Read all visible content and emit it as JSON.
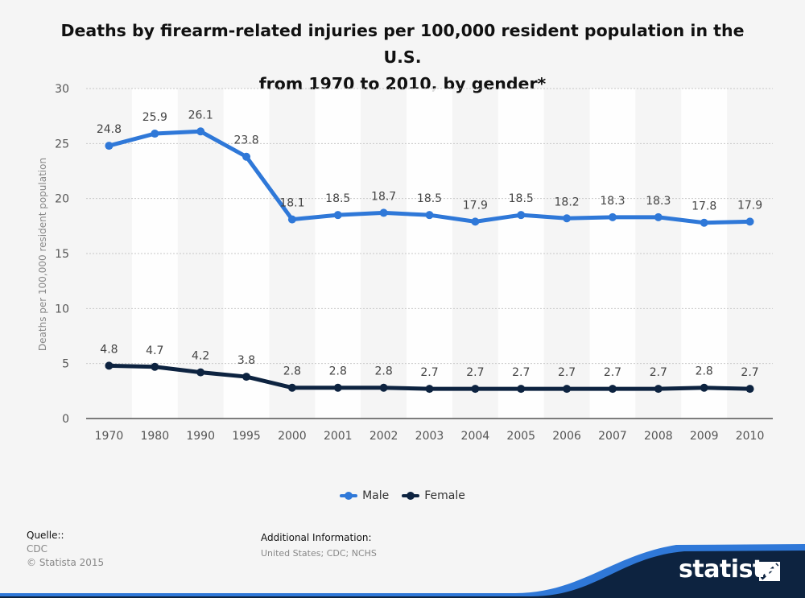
{
  "title_line1": "Deaths by firearm-related injuries per 100,000 resident population in the U.S.",
  "title_line2": "from 1970 to 2010, by gender*",
  "source": {
    "heading": "Quelle::",
    "name": "CDC",
    "copyright": "© Statista 2015"
  },
  "additional_info": {
    "heading": "Additional Information:",
    "text": "United States; CDC; NCHS"
  },
  "logo": {
    "text": "statista"
  },
  "colors": {
    "male": "#2f78d8",
    "female": "#0d2340",
    "band_odd": "#ffffff",
    "grid": "#c8c8c8",
    "footer_navy": "#0d2340",
    "footer_blue": "#2f78d8"
  },
  "chart_data": {
    "type": "line",
    "title": "Deaths by firearm-related injuries per 100,000 resident population in the U.S. from 1970 to 2010, by gender*",
    "ylabel": "Deaths per 100,000 resident population",
    "xlabel": "",
    "ylim": [
      0,
      30
    ],
    "yticks": [
      "0",
      "5",
      "10",
      "15",
      "20",
      "25",
      "30"
    ],
    "grid": true,
    "legend_position": "bottom",
    "categories": [
      "1970",
      "1980",
      "1990",
      "1995",
      "2000",
      "2001",
      "2002",
      "2003",
      "2004",
      "2005",
      "2006",
      "2007",
      "2008",
      "2009",
      "2010"
    ],
    "series": [
      {
        "name": "Male",
        "values": [
          24.8,
          25.9,
          26.1,
          23.8,
          18.1,
          18.5,
          18.7,
          18.5,
          17.9,
          18.5,
          18.2,
          18.3,
          18.3,
          17.8,
          17.9
        ],
        "labels": [
          "24.8",
          "25.9",
          "26.1",
          "23.8",
          "18.1",
          "18.5",
          "18.7",
          "18.5",
          "17.9",
          "18.5",
          "18.2",
          "18.3",
          "18.3",
          "17.8",
          "17.9"
        ]
      },
      {
        "name": "Female",
        "values": [
          4.8,
          4.7,
          4.2,
          3.8,
          2.8,
          2.8,
          2.8,
          2.7,
          2.7,
          2.7,
          2.7,
          2.7,
          2.7,
          2.8,
          2.7
        ],
        "labels": [
          "4.8",
          "4.7",
          "4.2",
          "3.8",
          "2.8",
          "2.8",
          "2.8",
          "2.7",
          "2.7",
          "2.7",
          "2.7",
          "2.7",
          "2.7",
          "2.8",
          "2.7"
        ]
      }
    ]
  }
}
